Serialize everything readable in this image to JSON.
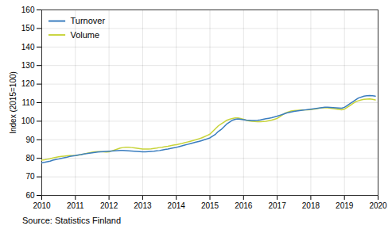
{
  "chart_data": {
    "type": "line",
    "ylabel": "Index (2015=100)",
    "annotations": [
      "Source: Statistics Finland"
    ],
    "x": [
      2010.0,
      2010.083,
      2010.167,
      2010.25,
      2010.333,
      2010.417,
      2010.5,
      2010.583,
      2010.667,
      2010.75,
      2010.833,
      2010.917,
      2011.0,
      2011.083,
      2011.167,
      2011.25,
      2011.333,
      2011.417,
      2011.5,
      2011.583,
      2011.667,
      2011.75,
      2011.833,
      2011.917,
      2012.0,
      2012.083,
      2012.167,
      2012.25,
      2012.333,
      2012.417,
      2012.5,
      2012.583,
      2012.667,
      2012.75,
      2012.833,
      2012.917,
      2013.0,
      2013.083,
      2013.167,
      2013.25,
      2013.333,
      2013.417,
      2013.5,
      2013.583,
      2013.667,
      2013.75,
      2013.833,
      2013.917,
      2014.0,
      2014.083,
      2014.167,
      2014.25,
      2014.333,
      2014.417,
      2014.5,
      2014.583,
      2014.667,
      2014.75,
      2014.833,
      2014.917,
      2015.0,
      2015.083,
      2015.167,
      2015.25,
      2015.333,
      2015.417,
      2015.5,
      2015.583,
      2015.667,
      2015.75,
      2015.833,
      2015.917,
      2016.0,
      2016.083,
      2016.167,
      2016.25,
      2016.333,
      2016.417,
      2016.5,
      2016.583,
      2016.667,
      2016.75,
      2016.833,
      2016.917,
      2017.0,
      2017.083,
      2017.167,
      2017.25,
      2017.333,
      2017.417,
      2017.5,
      2017.583,
      2017.667,
      2017.75,
      2017.833,
      2017.917,
      2018.0,
      2018.083,
      2018.167,
      2018.25,
      2018.333,
      2018.417,
      2018.5,
      2018.583,
      2018.667,
      2018.75,
      2018.833,
      2018.917,
      2019.0,
      2019.083,
      2019.167,
      2019.25,
      2019.333,
      2019.417,
      2019.5,
      2019.583,
      2019.667,
      2019.75,
      2019.833,
      2019.917
    ],
    "series": [
      {
        "name": "Turnover",
        "color": "#3a7dbf",
        "values": [
          77.5,
          77.8,
          78.2,
          78.5,
          79.0,
          79.3,
          79.6,
          80.0,
          80.3,
          80.6,
          81.0,
          81.3,
          81.5,
          81.8,
          82.0,
          82.3,
          82.5,
          82.8,
          83.0,
          83.2,
          83.4,
          83.5,
          83.6,
          83.7,
          83.8,
          83.9,
          84.0,
          84.1,
          84.2,
          84.2,
          84.1,
          84.0,
          83.9,
          83.8,
          83.7,
          83.6,
          83.5,
          83.5,
          83.6,
          83.7,
          83.8,
          84.0,
          84.2,
          84.5,
          84.8,
          85.0,
          85.3,
          85.6,
          85.9,
          86.3,
          86.7,
          87.1,
          87.5,
          87.9,
          88.3,
          88.7,
          89.1,
          89.5,
          90.0,
          90.5,
          91.0,
          92.0,
          93.0,
          94.5,
          95.5,
          97.0,
          98.5,
          99.5,
          100.5,
          101.0,
          101.2,
          101.0,
          100.8,
          100.6,
          100.5,
          100.4,
          100.4,
          100.5,
          100.7,
          101.0,
          101.3,
          101.6,
          101.9,
          102.3,
          102.7,
          103.2,
          103.7,
          104.2,
          104.7,
          105.0,
          105.3,
          105.5,
          105.7,
          105.9,
          106.1,
          106.3,
          106.5,
          106.7,
          106.9,
          107.1,
          107.3,
          107.5,
          107.5,
          107.4,
          107.3,
          107.2,
          107.1,
          107.0,
          107.5,
          108.5,
          109.5,
          110.5,
          111.5,
          112.5,
          113.0,
          113.5,
          113.7,
          113.8,
          113.7,
          113.5
        ]
      },
      {
        "name": "Volume",
        "color": "#c8d43a",
        "values": [
          79.0,
          79.2,
          79.5,
          79.8,
          80.2,
          80.5,
          80.8,
          81.0,
          81.2,
          81.4,
          81.5,
          81.5,
          81.5,
          81.7,
          82.0,
          82.3,
          82.7,
          83.0,
          83.3,
          83.5,
          83.6,
          83.6,
          83.5,
          83.4,
          83.5,
          84.0,
          84.5,
          85.0,
          85.5,
          85.8,
          86.0,
          86.0,
          85.8,
          85.6,
          85.4,
          85.2,
          85.0,
          85.0,
          85.0,
          85.1,
          85.3,
          85.5,
          85.8,
          86.0,
          86.3,
          86.5,
          86.8,
          87.1,
          87.3,
          87.7,
          88.0,
          88.4,
          88.8,
          89.2,
          89.6,
          90.0,
          90.5,
          91.0,
          91.6,
          92.3,
          93.0,
          94.5,
          96.0,
          97.5,
          98.5,
          99.5,
          100.5,
          101.0,
          101.5,
          101.8,
          101.8,
          101.5,
          101.0,
          100.5,
          100.2,
          100.0,
          99.8,
          99.7,
          99.7,
          99.8,
          100.0,
          100.3,
          100.6,
          101.0,
          101.5,
          102.5,
          103.5,
          104.5,
          105.0,
          105.5,
          105.7,
          105.8,
          105.9,
          106.0,
          106.1,
          106.2,
          106.3,
          106.5,
          106.7,
          107.0,
          107.2,
          107.3,
          107.2,
          107.0,
          106.8,
          106.6,
          106.4,
          106.2,
          106.5,
          107.5,
          108.5,
          109.5,
          110.5,
          111.0,
          111.5,
          111.8,
          111.9,
          112.0,
          111.8,
          111.5
        ]
      }
    ],
    "xlim": [
      2010,
      2020
    ],
    "ylim": [
      60,
      160
    ],
    "xticks": [
      2010,
      2011,
      2012,
      2013,
      2014,
      2015,
      2016,
      2017,
      2018,
      2019,
      2020
    ],
    "yticks": [
      60,
      70,
      80,
      90,
      100,
      110,
      120,
      130,
      140,
      150,
      160
    ],
    "grid": true,
    "legend": "upper left"
  }
}
